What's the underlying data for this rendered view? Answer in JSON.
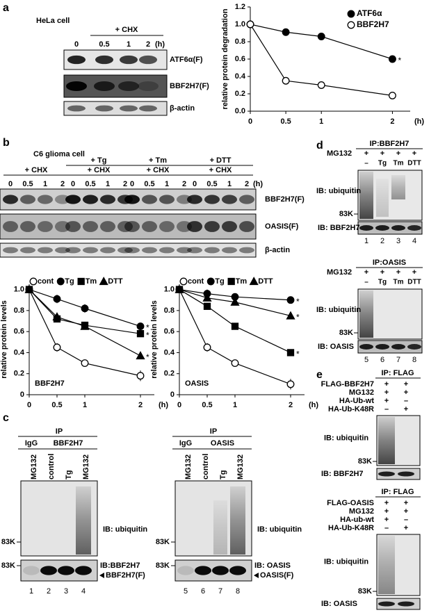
{
  "panel_a": {
    "letter": "a",
    "cell": "HeLa cell",
    "treatment": "+ CHX",
    "lanes": [
      "0",
      "0.5",
      "1",
      "2"
    ],
    "unit": "(h)",
    "rows": [
      "ATF6α(F)",
      "BBF2H7(F)",
      "β-actin"
    ]
  },
  "panel_b": {
    "letter": "b",
    "cell": "C6 glioma cell",
    "treatments": [
      "+ Tg",
      "+ Tm",
      "+ DTT"
    ],
    "chx": "+ CHX",
    "lanes": [
      "0",
      "0.5",
      "1",
      "2"
    ],
    "unit": "(h)",
    "rows": [
      "BBF2H7(F)",
      "OASIS(F)",
      "β-actin"
    ]
  },
  "panel_c": {
    "letter": "c",
    "blots": [
      {
        "ip": "IP",
        "control_ab": "IgG",
        "antibody": "BBF2H7",
        "lanes": [
          "MG132",
          "control",
          "Tg",
          "MG132"
        ],
        "ib_top": "IB: ubiquitin",
        "marker": "83K",
        "ib_bottom": "IB:BBF2H7",
        "band": "BBF2H7(F)",
        "numbers": [
          "1",
          "2",
          "3",
          "4"
        ]
      },
      {
        "ip": "IP",
        "control_ab": "IgG",
        "antibody": "OASIS",
        "lanes": [
          "MG132",
          "control",
          "Tg",
          "MG132"
        ],
        "ib_top": "IB: ubiquitin",
        "marker": "83K",
        "ib_bottom": "IB: OASIS",
        "band": "OASIS(F)",
        "numbers": [
          "5",
          "6",
          "7",
          "8"
        ]
      }
    ]
  },
  "panel_d": {
    "letter": "d",
    "blots": [
      {
        "ip": "IP:BBF2H7",
        "treatment": "MG132",
        "signs": [
          "+",
          "+",
          "+",
          "+"
        ],
        "lanes": [
          "–",
          "Tg",
          "Tm",
          "DTT"
        ],
        "ib_top": "IB: ubiquitin",
        "marker": "83K",
        "ib_bottom": "IB: BBF2H7",
        "numbers": [
          "1",
          "2",
          "3",
          "4"
        ]
      },
      {
        "ip": "IP:OASIS",
        "treatment": "MG132",
        "signs": [
          "+",
          "+",
          "+",
          "+"
        ],
        "lanes": [
          "–",
          "Tg",
          "Tm",
          "DTT"
        ],
        "ib_top": "IB: ubiquitin",
        "marker": "83K",
        "ib_bottom": "IB: OASIS",
        "numbers": [
          "5",
          "6",
          "7",
          "8"
        ]
      }
    ]
  },
  "panel_e": {
    "letter": "e",
    "blots": [
      {
        "ip": "IP: FLAG",
        "rows": [
          {
            "label": "FLAG-BBF2H7",
            "signs": [
              "+",
              "+"
            ]
          },
          {
            "label": "MG132",
            "signs": [
              "+",
              "+"
            ]
          },
          {
            "label": "HA-Ub-wt",
            "signs": [
              "+",
              "–"
            ]
          },
          {
            "label": "HA-Ub-K48R",
            "signs": [
              "–",
              "+"
            ]
          }
        ],
        "ib_top": "IB: ubiquitin",
        "marker": "83K",
        "ib_bottom": "IB: BBF2H7"
      },
      {
        "ip": "IP: FLAG",
        "rows": [
          {
            "label": "FLAG-OASIS",
            "signs": [
              "+",
              "+"
            ]
          },
          {
            "label": "MG132",
            "signs": [
              "+",
              "+"
            ]
          },
          {
            "label": "HA-ub-wt",
            "signs": [
              "+",
              "–"
            ]
          },
          {
            "label": "HA-Ub-K48R",
            "signs": [
              "–",
              "+"
            ]
          }
        ],
        "ib_top": "IB: ubiquitin",
        "marker": "83K",
        "ib_bottom": "IB: OASIS"
      }
    ]
  },
  "chart_data": [
    {
      "type": "line",
      "ylabel": "relative protein degradation",
      "xlabel": "(h)",
      "legend": "upper right",
      "x": [
        0,
        0.5,
        1,
        2
      ],
      "xlim": [
        0,
        2.25
      ],
      "xticks": [
        0,
        0.5,
        1,
        2
      ],
      "ylim": [
        0,
        1.2
      ],
      "yticks": [
        {
          "value": 0,
          "label": "0.0"
        },
        0.2,
        0.4,
        0.6,
        0.8,
        {
          "value": 1,
          "label": "1.0"
        },
        1.2
      ],
      "series": [
        {
          "name": "ATF6α",
          "color": "#000000",
          "marker": "circle",
          "marker_fill": "#000000",
          "values": [
            1.0,
            0.91,
            0.86,
            0.6
          ],
          "errors": [
            0,
            0.04,
            0.04,
            0.02
          ],
          "end_label": "*"
        },
        {
          "name": "BBF2H7",
          "color": "#000000",
          "marker": "circle",
          "marker_fill": "#ffffff",
          "values": [
            1.0,
            0.35,
            0.3,
            0.18
          ],
          "errors": [
            0,
            0.03,
            0.02,
            0.04
          ]
        }
      ]
    },
    {
      "type": "line",
      "ylabel": "relative protein levels",
      "xlabel": "(h)",
      "label": "BBF2H7",
      "legend": "top",
      "x": [
        0,
        0.5,
        1,
        2
      ],
      "xlim": [
        0,
        2.25
      ],
      "xticks": [
        0,
        0.5,
        1,
        2
      ],
      "ylim": [
        0,
        1.05
      ],
      "yticks": [
        0,
        0.2,
        0.4,
        0.6,
        0.8,
        {
          "value": 1,
          "label": "1.0"
        }
      ],
      "series": [
        {
          "name": "cont",
          "color": "#000000",
          "marker": "circle",
          "marker_fill": "#ffffff",
          "values": [
            1.0,
            0.45,
            0.3,
            0.18
          ],
          "errors": [
            0,
            0.04,
            0.02,
            0.05
          ]
        },
        {
          "name": "Tg",
          "color": "#000000",
          "marker": "circle",
          "marker_fill": "#000000",
          "values": [
            1.0,
            0.91,
            0.82,
            0.65
          ],
          "errors": [
            0,
            0.04,
            0.04,
            0.02
          ],
          "end_label": "*"
        },
        {
          "name": "Tm",
          "color": "#000000",
          "marker": "square",
          "marker_fill": "#000000",
          "values": [
            1.0,
            0.72,
            0.66,
            0.58
          ],
          "errors": [
            0,
            0.03,
            0.03,
            0.02
          ],
          "end_label": "*"
        },
        {
          "name": "DTT",
          "color": "#000000",
          "marker": "triangle",
          "marker_fill": "#000000",
          "values": [
            1.0,
            0.74,
            0.65,
            0.37
          ],
          "errors": [
            0,
            0.03,
            0.03,
            0.02
          ],
          "end_label": "*"
        }
      ]
    },
    {
      "type": "line",
      "ylabel": "relative protein levels",
      "xlabel": "(h)",
      "label": "OASIS",
      "legend": "top",
      "x": [
        0,
        0.5,
        1,
        2
      ],
      "xlim": [
        0,
        2.25
      ],
      "xticks": [
        0,
        0.5,
        1,
        2
      ],
      "ylim": [
        0,
        1.05
      ],
      "yticks": [
        0,
        0.2,
        0.4,
        0.6,
        0.8,
        {
          "value": 1,
          "label": "1.0"
        }
      ],
      "series": [
        {
          "name": "cont",
          "color": "#000000",
          "marker": "circle",
          "marker_fill": "#ffffff",
          "values": [
            1.0,
            0.45,
            0.3,
            0.1
          ],
          "errors": [
            0,
            0.04,
            0.02,
            0.05
          ]
        },
        {
          "name": "Tg",
          "color": "#000000",
          "marker": "circle",
          "marker_fill": "#000000",
          "values": [
            1.0,
            0.96,
            0.93,
            0.9
          ],
          "errors": [
            0,
            0.04,
            0.03,
            0.02
          ],
          "end_label": "*"
        },
        {
          "name": "Tm",
          "color": "#000000",
          "marker": "square",
          "marker_fill": "#000000",
          "values": [
            1.0,
            0.84,
            0.65,
            0.4
          ],
          "errors": [
            0,
            0.03,
            0.03,
            0.02
          ],
          "end_label": "*"
        },
        {
          "name": "DTT",
          "color": "#000000",
          "marker": "triangle",
          "marker_fill": "#000000",
          "values": [
            1.0,
            0.92,
            0.88,
            0.75
          ],
          "errors": [
            0,
            0.03,
            0.03,
            0.03
          ],
          "end_label": "*"
        }
      ]
    }
  ]
}
